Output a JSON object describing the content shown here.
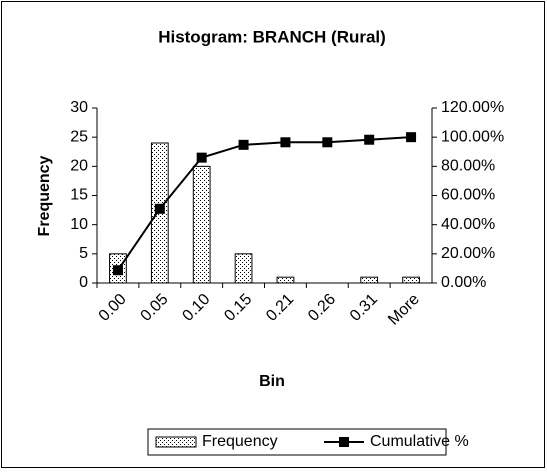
{
  "chart_data": {
    "type": "bar",
    "title": "Histogram: BRANCH (Rural)",
    "x_label": "Bin",
    "y_label": "Frequency",
    "categories": [
      "0.00",
      "0.05",
      "0.10",
      "0.15",
      "0.21",
      "0.26",
      "0.31",
      "More"
    ],
    "series": [
      {
        "name": "Frequency",
        "type": "bar",
        "color": "#ffffff",
        "values": [
          5,
          24,
          20,
          5,
          1,
          0,
          1,
          1
        ]
      },
      {
        "name": "Cumulative %",
        "type": "line",
        "axis": "y2",
        "color": "#000000",
        "values": [
          8.77,
          50.88,
          85.96,
          94.74,
          96.49,
          96.49,
          98.25,
          100
        ]
      }
    ],
    "ylim": [
      0,
      30
    ],
    "yticks": [
      0,
      5,
      10,
      15,
      20,
      25,
      30
    ],
    "y2lim": [
      0,
      120
    ],
    "y2ticks": [
      {
        "value": 0,
        "label": "0.00%"
      },
      {
        "value": 20,
        "label": "20.00%"
      },
      {
        "value": 40,
        "label": "40.00%"
      },
      {
        "value": 60,
        "label": "60.00%"
      },
      {
        "value": 80,
        "label": "80.00%"
      },
      {
        "value": 100,
        "label": "100.00%"
      },
      {
        "value": 120,
        "label": "120.00%"
      }
    ],
    "legend": "bottom"
  }
}
